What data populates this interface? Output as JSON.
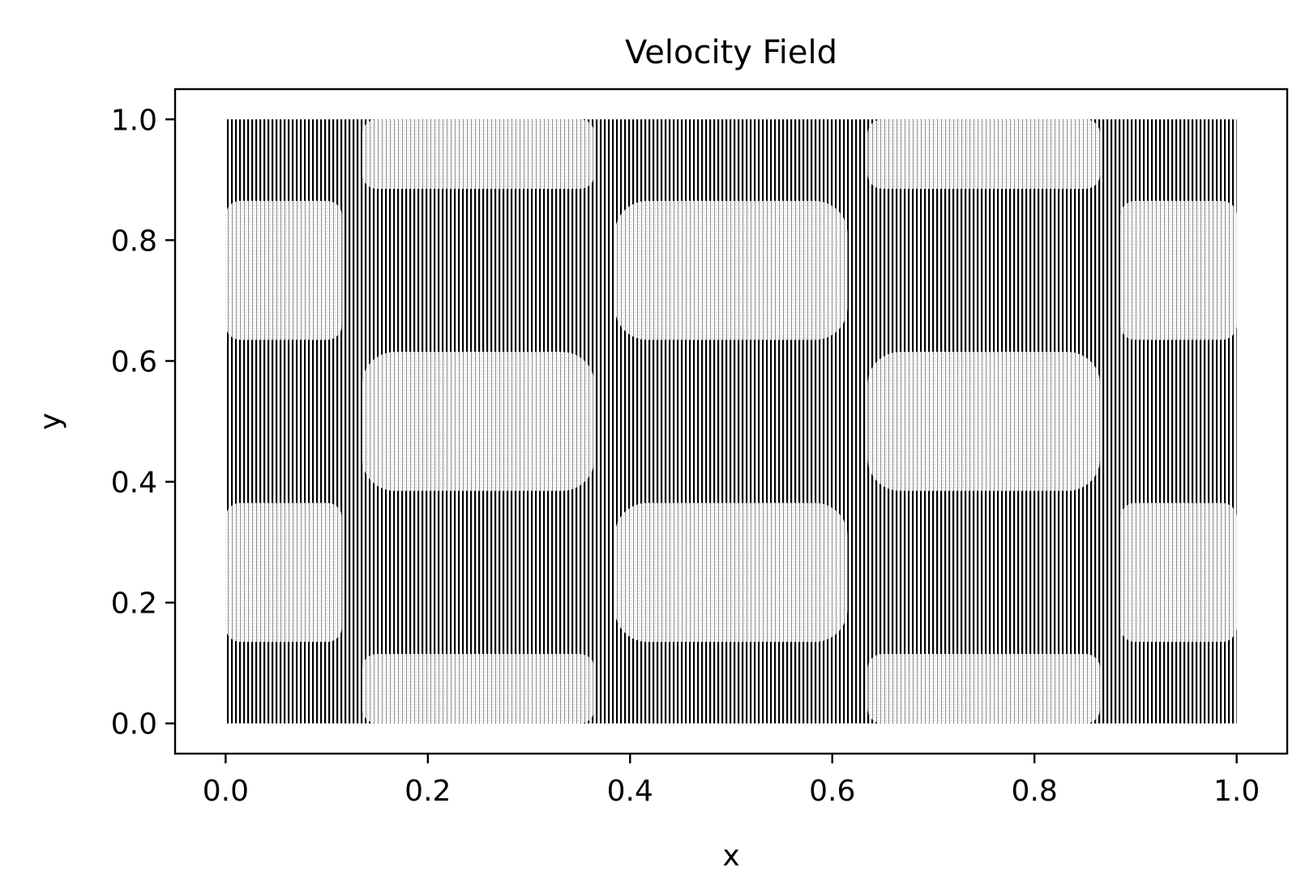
{
  "chart_data": {
    "type": "quiver",
    "title": "Velocity Field",
    "xlabel": "x",
    "ylabel": "y",
    "xlim": [
      -0.05,
      1.05
    ],
    "ylim": [
      -0.05,
      1.05
    ],
    "xticks": [
      0.0,
      0.2,
      0.4,
      0.6,
      0.8,
      1.0
    ],
    "yticks": [
      0.0,
      0.2,
      0.4,
      0.6,
      0.8,
      1.0
    ],
    "xtick_labels": [
      "0.0",
      "0.2",
      "0.4",
      "0.6",
      "0.8",
      "1.0"
    ],
    "ytick_labels": [
      "0.0",
      "0.2",
      "0.4",
      "0.6",
      "0.8",
      "1.0"
    ],
    "grid": false,
    "legend": "none",
    "field_domain": {
      "x": [
        0.0,
        1.0
      ],
      "y": [
        0.0,
        1.0
      ]
    },
    "field_pattern": {
      "periods_x": 2,
      "periods_y": 2,
      "light_cells": [
        {
          "x": [
            0.135,
            0.365
          ],
          "y": [
            0.885,
            1.0
          ]
        },
        {
          "x": [
            0.635,
            0.865
          ],
          "y": [
            0.885,
            1.0
          ]
        },
        {
          "x": [
            0.0,
            0.115
          ],
          "y": [
            0.635,
            0.865
          ]
        },
        {
          "x": [
            0.385,
            0.615
          ],
          "y": [
            0.635,
            0.865
          ]
        },
        {
          "x": [
            0.885,
            1.0
          ],
          "y": [
            0.635,
            0.865
          ]
        },
        {
          "x": [
            0.135,
            0.365
          ],
          "y": [
            0.385,
            0.615
          ]
        },
        {
          "x": [
            0.635,
            0.865
          ],
          "y": [
            0.385,
            0.615
          ]
        },
        {
          "x": [
            0.0,
            0.115
          ],
          "y": [
            0.135,
            0.365
          ]
        },
        {
          "x": [
            0.385,
            0.615
          ],
          "y": [
            0.135,
            0.365
          ]
        },
        {
          "x": [
            0.885,
            1.0
          ],
          "y": [
            0.135,
            0.365
          ]
        },
        {
          "x": [
            0.135,
            0.365
          ],
          "y": [
            0.0,
            0.115
          ]
        },
        {
          "x": [
            0.635,
            0.865
          ],
          "y": [
            0.0,
            0.115
          ]
        }
      ]
    },
    "colors": {
      "dense": "#000000",
      "light": "#d9d9d9",
      "background": "#ffffff",
      "axes": "#000000"
    }
  }
}
